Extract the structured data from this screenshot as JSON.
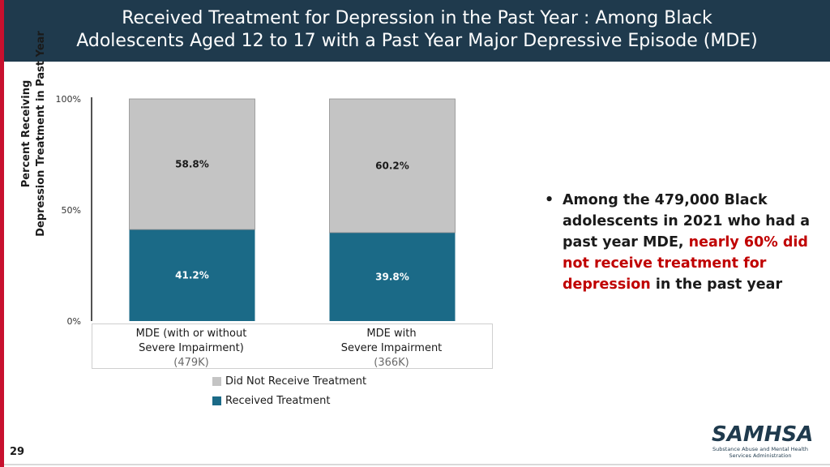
{
  "header": {
    "title_line1": "Received Treatment for Depression in the Past Year : Among Black",
    "title_line2": "Adolescents Aged 12 to 17 with a Past Year Major Depressive Episode (MDE)"
  },
  "chart_data": {
    "type": "bar",
    "stacked": true,
    "ylabel_line1": "Percent Receiving",
    "ylabel_line2": "Depression Treatment in Past Year",
    "ylim": [
      0,
      100
    ],
    "yticks": [
      {
        "value": 0,
        "label": "0%"
      },
      {
        "value": 50,
        "label": "50%"
      },
      {
        "value": 100,
        "label": "100%"
      }
    ],
    "categories": [
      {
        "line1": "MDE (with or without",
        "line2": "Severe Impairment)",
        "n": "(479K)"
      },
      {
        "line1": "MDE with",
        "line2": "Severe Impairment",
        "n": "(366K)"
      }
    ],
    "series": [
      {
        "name": "Received Treatment",
        "color": "#1b6a87",
        "values": [
          41.2,
          39.8
        ],
        "labels": [
          "41.2%",
          "39.8%"
        ]
      },
      {
        "name": "Did Not Receive Treatment",
        "color": "#c4c4c4",
        "values": [
          58.8,
          60.2
        ],
        "labels": [
          "58.8%",
          "60.2%"
        ]
      }
    ]
  },
  "legend": {
    "item1": "Did Not Receive Treatment",
    "item2": "Received Treatment",
    "color1": "#c4c4c4",
    "color2": "#1b6a87"
  },
  "bullet": {
    "part1": "Among the 479,000 Black adolescents in 2021 who had a past year MDE, ",
    "highlight": "nearly 60% did not receive treatment for depression",
    "part2": " in the past year"
  },
  "logo": {
    "name": "SAMHSA",
    "sub_line1": "Substance Abuse and Mental Health",
    "sub_line2": "Services Administration"
  },
  "page_number": "29"
}
